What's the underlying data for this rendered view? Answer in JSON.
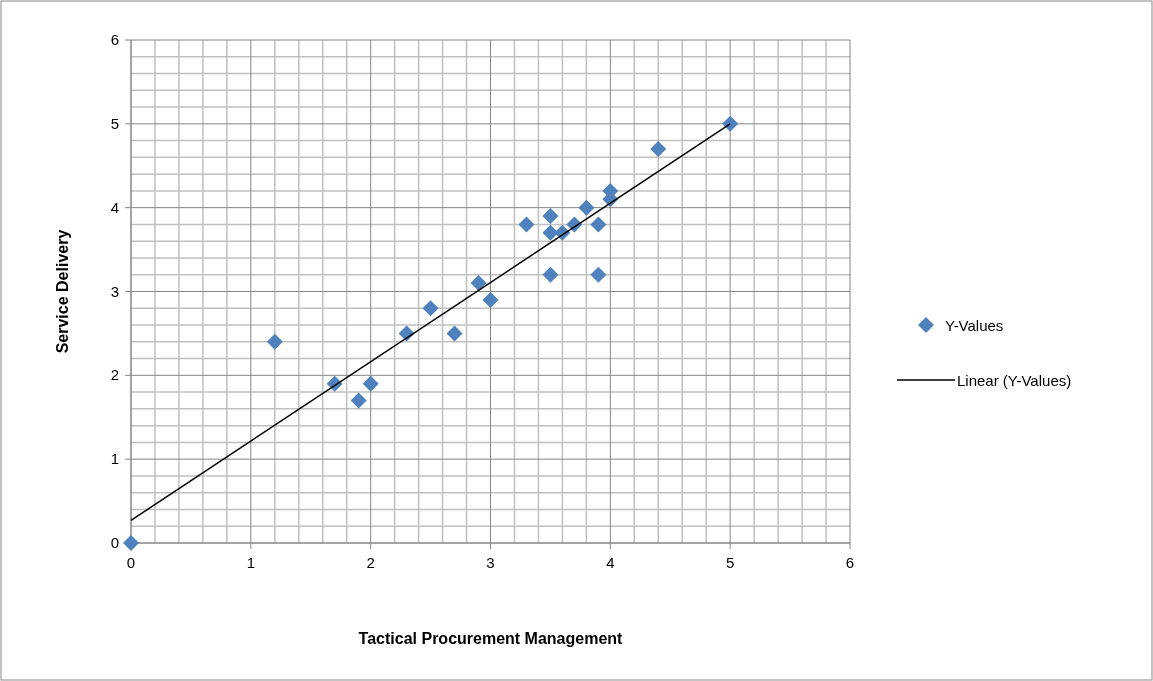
{
  "chart_data": {
    "type": "scatter",
    "xlabel": "Tactical Procurement Management",
    "ylabel": "Service Delivery",
    "xlim": [
      0,
      6
    ],
    "xticks": [
      0,
      1,
      2,
      3,
      4,
      5,
      6
    ],
    "ylim": [
      0,
      6
    ],
    "yticks": [
      0,
      1,
      2,
      3,
      4,
      5,
      6
    ],
    "grid": true,
    "legend": "right",
    "series": [
      {
        "name": "Y-Values",
        "marker": "diamond",
        "color": "#4f81bd",
        "x": [
          0,
          1.2,
          1.7,
          1.9,
          2,
          2.3,
          2.5,
          2.7,
          2.9,
          3,
          3.3,
          3.5,
          3.5,
          3.5,
          3.6,
          3.7,
          3.8,
          3.9,
          3.9,
          4,
          4,
          4.4,
          5
        ],
        "values": [
          0,
          2.4,
          1.9,
          1.7,
          1.9,
          2.5,
          2.8,
          2.5,
          3.1,
          2.9,
          3.8,
          3.9,
          3.7,
          3.2,
          3.7,
          3.8,
          4.0,
          3.8,
          3.2,
          4.1,
          4.2,
          4.7,
          5
        ]
      },
      {
        "name": "Linear (Y-Values)",
        "type": "line",
        "marker": "none",
        "line_style": "solid",
        "color": "#000000",
        "x": [
          0,
          5
        ],
        "values": [
          0.27,
          5
        ]
      }
    ]
  }
}
